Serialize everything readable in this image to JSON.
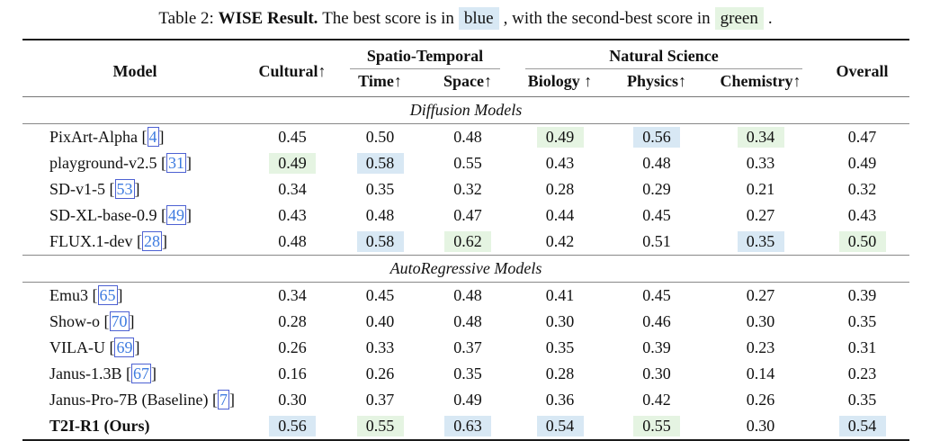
{
  "caption": {
    "prefix": "Table 2:",
    "bold_title": "WISE Result.",
    "text_before_blue": "The best score is in",
    "blue_word": "blue",
    "text_between": ", with the second-best score in",
    "green_word": "green",
    "text_end": "."
  },
  "colors": {
    "best_highlight": "#d8e8f4",
    "second_best_highlight": "#e5f4e2",
    "citation_link": "#3d7be0"
  },
  "table": {
    "header": {
      "model": "Model",
      "cultural": "Cultural↑",
      "spatio_temporal": "Spatio-Temporal",
      "time": "Time↑",
      "space": "Space↑",
      "natural_science": "Natural Science",
      "biology": "Biology ↑",
      "physics": "Physics↑",
      "chemistry": "Chemistry↑",
      "overall": "Overall"
    },
    "sections": [
      {
        "label": "Diffusion Models",
        "rows": [
          {
            "model": "PixArt-Alpha",
            "ref": "4",
            "bold": false,
            "cells": [
              {
                "v": "0.45",
                "h": ""
              },
              {
                "v": "0.50",
                "h": ""
              },
              {
                "v": "0.48",
                "h": ""
              },
              {
                "v": "0.49",
                "h": "green"
              },
              {
                "v": "0.56",
                "h": "blue"
              },
              {
                "v": "0.34",
                "h": "green"
              },
              {
                "v": "0.47",
                "h": ""
              }
            ]
          },
          {
            "model": "playground-v2.5",
            "ref": "31",
            "bold": false,
            "cells": [
              {
                "v": "0.49",
                "h": "green"
              },
              {
                "v": "0.58",
                "h": "blue"
              },
              {
                "v": "0.55",
                "h": ""
              },
              {
                "v": "0.43",
                "h": ""
              },
              {
                "v": "0.48",
                "h": ""
              },
              {
                "v": "0.33",
                "h": ""
              },
              {
                "v": "0.49",
                "h": ""
              }
            ]
          },
          {
            "model": "SD-v1-5",
            "ref": "53",
            "bold": false,
            "cells": [
              {
                "v": "0.34",
                "h": ""
              },
              {
                "v": "0.35",
                "h": ""
              },
              {
                "v": "0.32",
                "h": ""
              },
              {
                "v": "0.28",
                "h": ""
              },
              {
                "v": "0.29",
                "h": ""
              },
              {
                "v": "0.21",
                "h": ""
              },
              {
                "v": "0.32",
                "h": ""
              }
            ]
          },
          {
            "model": "SD-XL-base-0.9",
            "ref": "49",
            "bold": false,
            "cells": [
              {
                "v": "0.43",
                "h": ""
              },
              {
                "v": "0.48",
                "h": ""
              },
              {
                "v": "0.47",
                "h": ""
              },
              {
                "v": "0.44",
                "h": ""
              },
              {
                "v": "0.45",
                "h": ""
              },
              {
                "v": "0.27",
                "h": ""
              },
              {
                "v": "0.43",
                "h": ""
              }
            ]
          },
          {
            "model": "FLUX.1-dev",
            "ref": "28",
            "bold": false,
            "cells": [
              {
                "v": "0.48",
                "h": ""
              },
              {
                "v": "0.58",
                "h": "blue"
              },
              {
                "v": "0.62",
                "h": "green"
              },
              {
                "v": "0.42",
                "h": ""
              },
              {
                "v": "0.51",
                "h": ""
              },
              {
                "v": "0.35",
                "h": "blue"
              },
              {
                "v": "0.50",
                "h": "green"
              }
            ]
          }
        ]
      },
      {
        "label": "AutoRegressive Models",
        "rows": [
          {
            "model": "Emu3",
            "ref": "65",
            "bold": false,
            "cells": [
              {
                "v": "0.34",
                "h": ""
              },
              {
                "v": "0.45",
                "h": ""
              },
              {
                "v": "0.48",
                "h": ""
              },
              {
                "v": "0.41",
                "h": ""
              },
              {
                "v": "0.45",
                "h": ""
              },
              {
                "v": "0.27",
                "h": ""
              },
              {
                "v": "0.39",
                "h": ""
              }
            ]
          },
          {
            "model": "Show-o",
            "ref": "70",
            "bold": false,
            "cells": [
              {
                "v": "0.28",
                "h": ""
              },
              {
                "v": "0.40",
                "h": ""
              },
              {
                "v": "0.48",
                "h": ""
              },
              {
                "v": "0.30",
                "h": ""
              },
              {
                "v": "0.46",
                "h": ""
              },
              {
                "v": "0.30",
                "h": ""
              },
              {
                "v": "0.35",
                "h": ""
              }
            ]
          },
          {
            "model": "VILA-U",
            "ref": "69",
            "bold": false,
            "cells": [
              {
                "v": "0.26",
                "h": ""
              },
              {
                "v": "0.33",
                "h": ""
              },
              {
                "v": "0.37",
                "h": ""
              },
              {
                "v": "0.35",
                "h": ""
              },
              {
                "v": "0.39",
                "h": ""
              },
              {
                "v": "0.23",
                "h": ""
              },
              {
                "v": "0.31",
                "h": ""
              }
            ]
          },
          {
            "model": "Janus-1.3B",
            "ref": "67",
            "bold": false,
            "cells": [
              {
                "v": "0.16",
                "h": ""
              },
              {
                "v": "0.26",
                "h": ""
              },
              {
                "v": "0.35",
                "h": ""
              },
              {
                "v": "0.28",
                "h": ""
              },
              {
                "v": "0.30",
                "h": ""
              },
              {
                "v": "0.14",
                "h": ""
              },
              {
                "v": "0.23",
                "h": ""
              }
            ]
          },
          {
            "model": "Janus-Pro-7B (Baseline)",
            "ref": "7",
            "bold": false,
            "cells": [
              {
                "v": "0.30",
                "h": ""
              },
              {
                "v": "0.37",
                "h": ""
              },
              {
                "v": "0.49",
                "h": ""
              },
              {
                "v": "0.36",
                "h": ""
              },
              {
                "v": "0.42",
                "h": ""
              },
              {
                "v": "0.26",
                "h": ""
              },
              {
                "v": "0.35",
                "h": ""
              }
            ]
          },
          {
            "model": "T2I-R1 (Ours)",
            "ref": "",
            "bold": true,
            "cells": [
              {
                "v": "0.56",
                "h": "blue"
              },
              {
                "v": "0.55",
                "h": "green"
              },
              {
                "v": "0.63",
                "h": "blue"
              },
              {
                "v": "0.54",
                "h": "blue"
              },
              {
                "v": "0.55",
                "h": "green"
              },
              {
                "v": "0.30",
                "h": ""
              },
              {
                "v": "0.54",
                "h": "blue"
              }
            ]
          }
        ]
      }
    ]
  }
}
